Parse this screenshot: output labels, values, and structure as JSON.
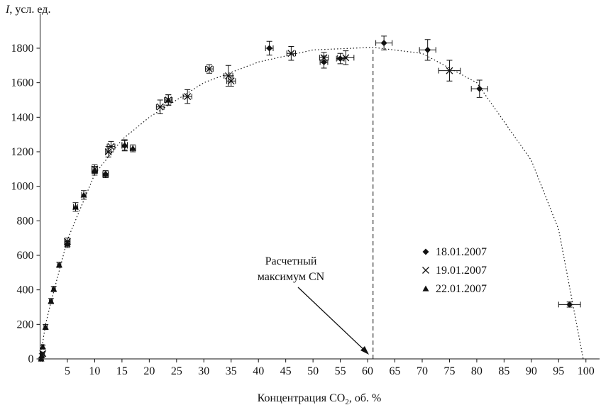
{
  "chart_data": {
    "type": "scatter",
    "y_label": {
      "symbol": "I",
      "rest": ", усл. ед."
    },
    "x_label": [
      "Концентрация CO",
      "2",
      ", об. %"
    ],
    "xlim": [
      0,
      102.5
    ],
    "ylim": [
      0,
      2000
    ],
    "xticks": [
      5,
      10,
      15,
      20,
      25,
      30,
      35,
      40,
      45,
      50,
      55,
      60,
      65,
      70,
      75,
      80,
      85,
      90,
      95,
      100
    ],
    "yticks": [
      0,
      200,
      400,
      600,
      800,
      1000,
      1200,
      1400,
      1600,
      1800
    ],
    "legend": "right",
    "series": [
      {
        "name": "18.01.2007",
        "marker": "diamond",
        "color": "#111",
        "x": [
          12,
          15.5,
          42,
          52,
          55,
          63,
          71,
          80.5,
          97
        ],
        "values": [
          1070,
          1235,
          1800,
          1720,
          1740,
          1830,
          1790,
          1565,
          315
        ],
        "yerr": [
          20,
          30,
          40,
          35,
          30,
          40,
          60,
          50,
          15
        ],
        "xerr": [
          0.5,
          0.5,
          0.7,
          0.7,
          0.7,
          1.5,
          1.5,
          1.5,
          2
        ]
      },
      {
        "name": "19.01.2007",
        "marker": "cross",
        "color": "#111",
        "x": [
          0.5,
          5,
          10,
          12.5,
          13,
          22,
          23.5,
          27,
          31,
          34.5,
          35,
          46,
          52,
          56,
          75
        ],
        "values": [
          30,
          680,
          1100,
          1200,
          1230,
          1460,
          1500,
          1520,
          1680,
          1640,
          1610,
          1770,
          1745,
          1745,
          1670
        ],
        "yerr": [
          10,
          20,
          25,
          30,
          30,
          40,
          30,
          40,
          25,
          60,
          30,
          40,
          30,
          40,
          60
        ],
        "xerr": [
          0.3,
          0.5,
          0.5,
          0.5,
          0.7,
          0.7,
          0.7,
          0.8,
          0.7,
          0.8,
          0.8,
          0.8,
          0.8,
          1.5,
          2
        ]
      },
      {
        "name": "22.01.2007",
        "marker": "triangle",
        "color": "#111",
        "x": [
          0.2,
          0.3,
          0.5,
          1,
          2,
          2.5,
          3.5,
          5,
          6.5,
          8,
          10,
          12,
          15.5,
          17,
          23.5
        ],
        "values": [
          0,
          20,
          70,
          185,
          335,
          405,
          545,
          665,
          880,
          950,
          1090,
          1070,
          1240,
          1220,
          1500
        ],
        "yerr": [
          5,
          10,
          10,
          15,
          15,
          15,
          15,
          20,
          25,
          25,
          25,
          20,
          30,
          20,
          30
        ],
        "xerr": [
          0.2,
          0.2,
          0.2,
          0.3,
          0.3,
          0.3,
          0.3,
          0.4,
          0.4,
          0.4,
          0.5,
          0.5,
          0.5,
          0.5,
          0.6
        ]
      }
    ],
    "fit_curve": {
      "x": [
        0,
        1,
        2,
        5,
        10,
        15,
        20,
        30,
        40,
        50,
        61,
        70,
        80,
        90,
        95,
        99.5
      ],
      "y": [
        0,
        200,
        330,
        690,
        1070,
        1270,
        1400,
        1600,
        1720,
        1790,
        1805,
        1770,
        1600,
        1150,
        750,
        0
      ]
    },
    "max_point": {
      "x": 61,
      "y": 1805
    },
    "annotation": [
      "Расчетный",
      "максимум CN"
    ]
  }
}
